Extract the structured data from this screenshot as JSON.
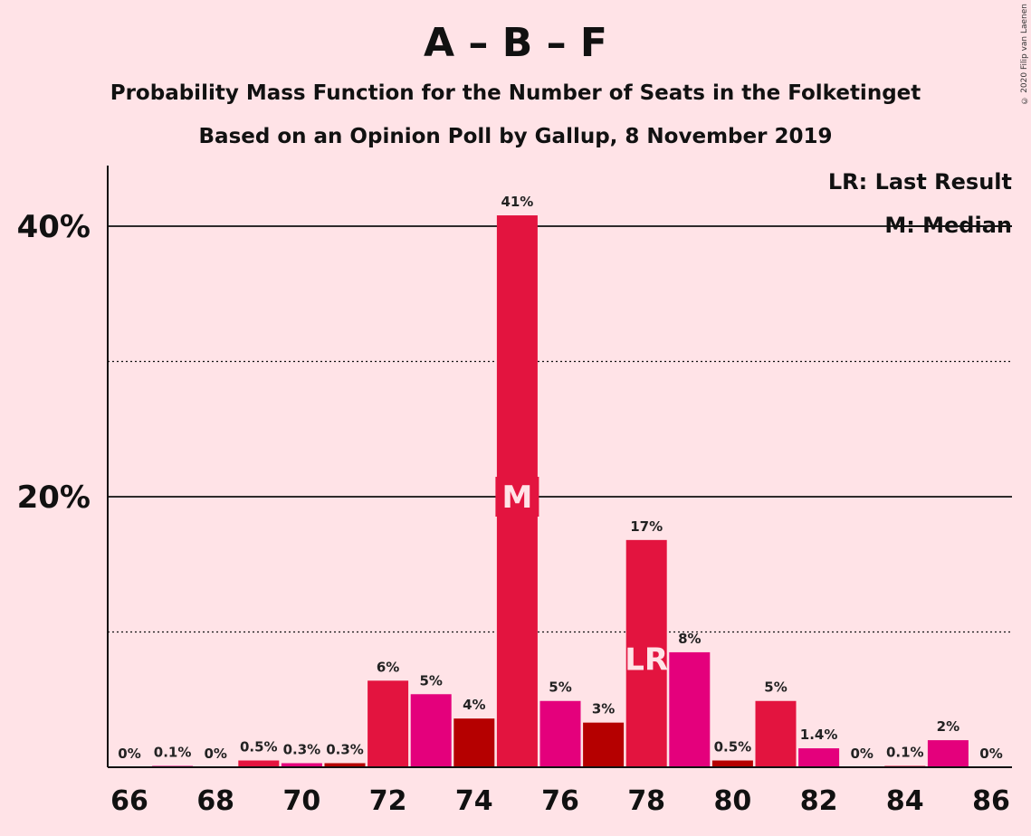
{
  "title": "A – B – F",
  "subtitle1": "Probability Mass Function for the Number of Seats in the Folketinget",
  "subtitle2": "Based on an Opinion Poll by Gallup, 8 November 2019",
  "copyright": "© 2020 Filip van Laenen",
  "legend": {
    "last_result": "LR: Last Result",
    "median": "M: Median"
  },
  "colors": {
    "background": "#FFE3E7",
    "red": "#E3143F",
    "magenta": "#E4007C",
    "darkred": "#B50000"
  },
  "chart_data": {
    "type": "bar",
    "xlabel": "",
    "ylabel": "",
    "ylim": [
      0,
      44.5
    ],
    "x_tick_labels": [
      "66",
      "68",
      "70",
      "72",
      "74",
      "76",
      "78",
      "80",
      "82",
      "84",
      "86"
    ],
    "y_tick_labels": [
      {
        "value": 20,
        "label": "20%"
      },
      {
        "value": 40,
        "label": "40%"
      }
    ],
    "gridlines_solid": [
      20,
      40
    ],
    "gridlines_dotted": [
      10,
      30
    ],
    "legend_placement": "top-right",
    "median_seat": 75,
    "last_result_seat": 78,
    "median_marker": "M",
    "last_result_marker": "LR",
    "bars": [
      {
        "seat": 66,
        "value": 0,
        "label": "0%",
        "color": "red"
      },
      {
        "seat": 67,
        "value": 0.1,
        "label": "0.1%",
        "color": "magenta"
      },
      {
        "seat": 68,
        "value": 0,
        "label": "0%",
        "color": "darkred"
      },
      {
        "seat": 69,
        "value": 0.5,
        "label": "0.5%",
        "color": "red"
      },
      {
        "seat": 70,
        "value": 0.3,
        "label": "0.3%",
        "color": "magenta"
      },
      {
        "seat": 71,
        "value": 0.3,
        "label": "0.3%",
        "color": "darkred"
      },
      {
        "seat": 72,
        "value": 6.4,
        "label": "6%",
        "color": "red"
      },
      {
        "seat": 73,
        "value": 5.4,
        "label": "5%",
        "color": "magenta"
      },
      {
        "seat": 74,
        "value": 3.6,
        "label": "4%",
        "color": "darkred"
      },
      {
        "seat": 75,
        "value": 40.8,
        "label": "41%",
        "color": "red"
      },
      {
        "seat": 76,
        "value": 4.9,
        "label": "5%",
        "color": "magenta"
      },
      {
        "seat": 77,
        "value": 3.3,
        "label": "3%",
        "color": "darkred"
      },
      {
        "seat": 78,
        "value": 16.8,
        "label": "17%",
        "color": "red"
      },
      {
        "seat": 79,
        "value": 8.5,
        "label": "8%",
        "color": "magenta"
      },
      {
        "seat": 80,
        "value": 0.5,
        "label": "0.5%",
        "color": "darkred"
      },
      {
        "seat": 81,
        "value": 4.9,
        "label": "5%",
        "color": "red"
      },
      {
        "seat": 82,
        "value": 1.4,
        "label": "1.4%",
        "color": "magenta"
      },
      {
        "seat": 83,
        "value": 0,
        "label": "0%",
        "color": "darkred"
      },
      {
        "seat": 84,
        "value": 0.1,
        "label": "0.1%",
        "color": "red"
      },
      {
        "seat": 85,
        "value": 2.0,
        "label": "2%",
        "color": "magenta"
      },
      {
        "seat": 86,
        "value": 0,
        "label": "0%",
        "color": "darkred"
      }
    ]
  }
}
